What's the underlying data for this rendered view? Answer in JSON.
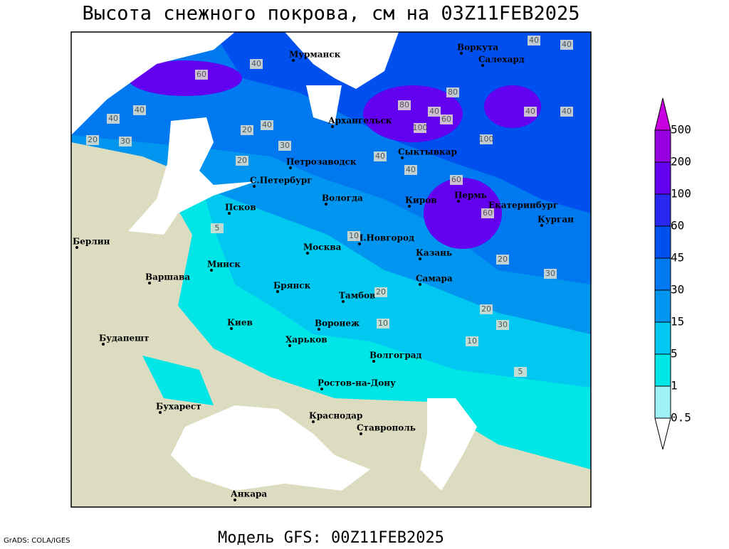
{
  "title": "Высота снежного покрова, см на 03Z11FEB2025",
  "footer": "Модель GFS: 00Z11FEB2025",
  "credit": "GrADS: COLA/IGES",
  "legend": {
    "levels": [
      0.5,
      1,
      5,
      15,
      30,
      45,
      60,
      100,
      200,
      500
    ],
    "colors": [
      "#ffffff",
      "#a0f0f8",
      "#00e6e6",
      "#00c8f0",
      "#0096f0",
      "#0078f0",
      "#0050f0",
      "#2828f0",
      "#6400f0",
      "#9600e0",
      "#c800e0"
    ]
  },
  "cities": [
    "Мурманск",
    "Воркута",
    "Салехард",
    "Архангельск",
    "Петрозаводск",
    "Сыктывкар",
    "С.Петербург",
    "Вологда",
    "Киров",
    "Пермь",
    "Екатеринбург",
    "Курган",
    "Псков",
    "Н.Новгород",
    "Казань",
    "Москва",
    "Берлин",
    "Минск",
    "Варшава",
    "Брянск",
    "Тамбов",
    "Самара",
    "Киев",
    "Воронеж",
    "Будапешт",
    "Харьков",
    "Волгоград",
    "Ростов-на-Дону",
    "Бухарест",
    "Краснодар",
    "Ставрополь",
    "Анкара"
  ],
  "contour_labels": [
    40,
    60,
    40,
    40,
    20,
    30,
    20,
    40,
    30,
    20,
    80,
    80,
    40,
    60,
    100,
    100,
    40,
    40,
    60,
    60,
    30,
    20,
    20,
    10,
    10,
    5,
    40,
    40,
    40,
    40,
    5,
    10,
    20,
    30
  ]
}
